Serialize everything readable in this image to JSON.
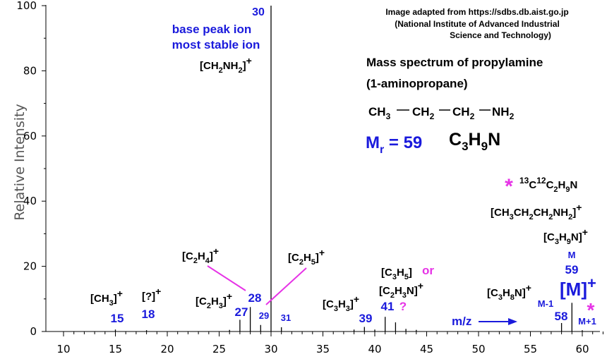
{
  "credit": {
    "line1": "Image adapted from https://sdbs.db.aist.go.jp",
    "line2": "(National Institute of Advanced Industrial",
    "line3": "Science and Technology)"
  },
  "title": {
    "line1": "Mass spectrum of propylamine",
    "line2": "(1-aminopropane)"
  },
  "structure": {
    "ch3": "CH",
    "ch3_sub": "3",
    "ch2a": "CH",
    "ch2a_sub": "2",
    "ch2b": "CH",
    "ch2b_sub": "2",
    "nh2": "NH",
    "nh2_sub": "2"
  },
  "mr": {
    "m": "M",
    "sub": "r",
    "value": " = 59"
  },
  "formula": {
    "c": "C",
    "c_sub": "3",
    "h": "H",
    "h_sub": "9",
    "n": "N"
  },
  "colors": {
    "blue": "#1a1adc",
    "magenta": "#e633e6",
    "black": "#000000"
  },
  "chart_data": {
    "type": "bar",
    "xlim": [
      10,
      62
    ],
    "ylim": [
      0,
      100
    ],
    "ylabel": "Relative Intensity",
    "xticks": [
      10,
      15,
      20,
      25,
      30,
      35,
      40,
      45,
      50,
      55,
      60
    ],
    "yticks": [
      0,
      20,
      40,
      60,
      80,
      100
    ],
    "peaks": [
      {
        "mz": 15,
        "intensity": 0.6
      },
      {
        "mz": 18,
        "intensity": 0.4
      },
      {
        "mz": 26,
        "intensity": 0.5
      },
      {
        "mz": 27,
        "intensity": 3.6
      },
      {
        "mz": 28,
        "intensity": 7.5
      },
      {
        "mz": 29,
        "intensity": 2.0
      },
      {
        "mz": 30,
        "intensity": 100
      },
      {
        "mz": 31,
        "intensity": 1.3
      },
      {
        "mz": 38,
        "intensity": 0.6
      },
      {
        "mz": 39,
        "intensity": 1.4
      },
      {
        "mz": 40,
        "intensity": 0.6
      },
      {
        "mz": 41,
        "intensity": 4.5
      },
      {
        "mz": 42,
        "intensity": 2.8
      },
      {
        "mz": 43,
        "intensity": 0.8
      },
      {
        "mz": 44,
        "intensity": 0.5
      },
      {
        "mz": 58,
        "intensity": 2.6
      },
      {
        "mz": 59,
        "intensity": 8.8
      },
      {
        "mz": 60,
        "intensity": 0.4
      }
    ],
    "annotations": {
      "base_peak_mz": "30",
      "base_peak_line1": "base peak ion",
      "base_peak_line2": "most stable ion",
      "ch2nh2": {
        "a": "[CH",
        "a_sub": "2",
        "b": "NH",
        "b_sub": "2",
        "c": "]",
        "sup": "+"
      },
      "ch3": {
        "a": "[CH",
        "a_sub": "3",
        "c": "]",
        "sup": "+"
      },
      "q": {
        "a": "[?]",
        "sup": "+"
      },
      "c2h3": {
        "a": "[C",
        "a_sub": "2",
        "b": "H",
        "b_sub": "3",
        "c": "]",
        "sup": "+"
      },
      "c2h4": {
        "a": "[C",
        "a_sub": "2",
        "b": "H",
        "b_sub": "4",
        "c": "]",
        "sup": "+"
      },
      "c2h5": {
        "a": "[C",
        "a_sub": "2",
        "b": "H",
        "b_sub": "5",
        "c": "]",
        "sup": "+"
      },
      "c3h3": {
        "a": "[C",
        "a_sub": "3",
        "b": "H",
        "b_sub": "3",
        "c": "]",
        "sup": "+"
      },
      "c3h5": {
        "a": "[C",
        "a_sub": "3",
        "b": "H",
        "b_sub": "5",
        "c": "]"
      },
      "or_text": "or",
      "c2h3n": {
        "a": "[C",
        "a_sub": "2",
        "b": "H",
        "b_sub": "3",
        "c": "N]",
        "sup": "+"
      },
      "qmark": "?",
      "c3h8n": {
        "a": "[C",
        "a_sub": "3",
        "b": "H",
        "b_sub": "8",
        "c": "N]",
        "sup": "+"
      },
      "c3h9n": {
        "a": "[C",
        "a_sub": "3",
        "b": "H",
        "b_sub": "9",
        "c": "N]",
        "sup": "+"
      },
      "ch3ch2ch2nh2": {
        "a": "[CH",
        "a_sub": "3",
        "b": "CH",
        "b_sub": "2",
        "c": "CH",
        "c_sub": "2",
        "d": "NH",
        "d_sub": "2",
        "e": "]",
        "sup": "+"
      },
      "isotope": {
        "sup1": "13",
        "a": "C",
        "sup2": "12",
        "b": "C",
        "b_sub": "2",
        "c": "H",
        "c_sub": "9",
        "d": "N"
      },
      "star": "*",
      "lbl_15": "15",
      "lbl_18": "18",
      "lbl_27": "27",
      "lbl_28": "28",
      "lbl_29": "29",
      "lbl_31": "31",
      "lbl_39": "39",
      "lbl_41": "41",
      "lbl_58": "58",
      "lbl_m1": "M-1",
      "lbl_m": "M",
      "lbl_59": "59",
      "lbl_mplus": "[M]",
      "lbl_mplus_sup": "+",
      "lbl_m_plus1": "M+1",
      "mz_label": "m/z"
    }
  }
}
